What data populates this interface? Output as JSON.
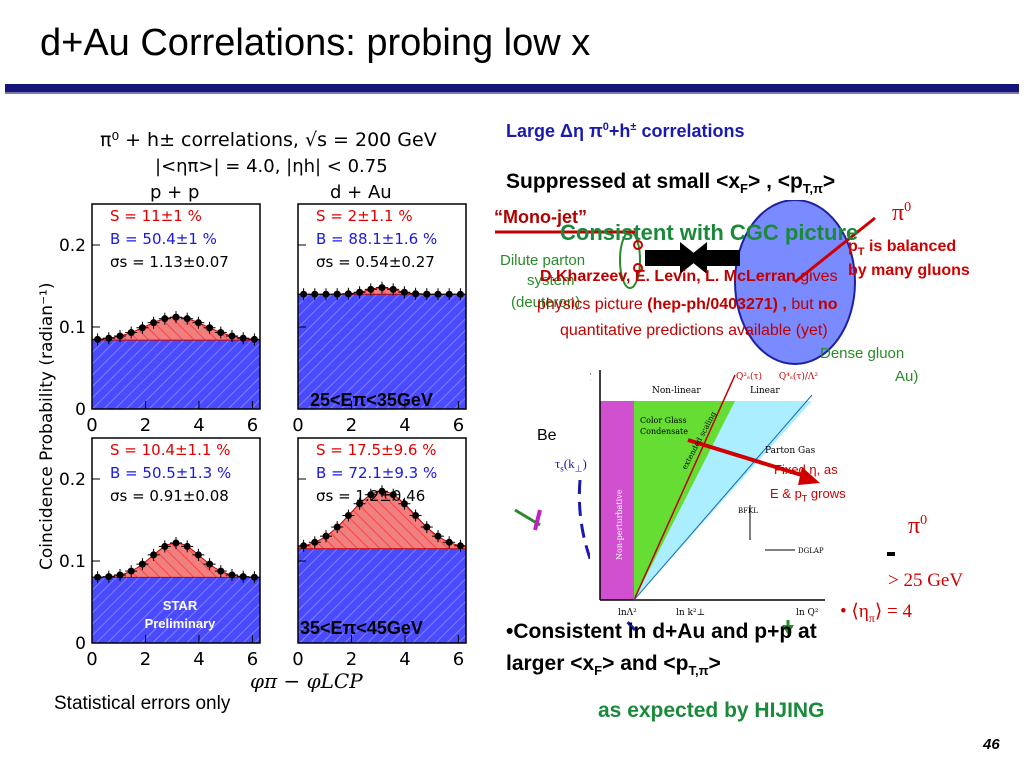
{
  "slide": {
    "title": "d+Au Correlations: probing low x",
    "page_number": "46",
    "footnote": "Statistical errors only",
    "hijing_note": "as expected by HIJING"
  },
  "bullets": {
    "large_prefix": "Large ",
    "large_symbols": "Δη π",
    "large_sup": "0",
    "large_suffix": "+h",
    "large_pm": "±",
    "large_end": " correlations",
    "suppressed_prefix": "Suppressed at small <x",
    "suppressed_sub1": "F",
    "suppressed_mid": "> , <p",
    "suppressed_sub2": "T,π",
    "suppressed_end": ">",
    "consistent_prefix": "•Consistent in d+Au and p+p at",
    "consistent_line2_prefix": "larger <x",
    "consistent_sub1": "F",
    "consistent_mid": "> and <p",
    "consistent_sub2": "T,π",
    "consistent_end": ">"
  },
  "overlay": {
    "mono_jet": "“Mono-jet”",
    "consistent_cgc": "Consistent with CGC picture",
    "dilute_parton": "Dilute parton",
    "system": "system",
    "deuteron": "(deuteron)",
    "pt_balanced": "p",
    "pt_balanced_sub": "T",
    "pt_balanced_rest": " is balanced",
    "by_many_gluons": "by many gluons",
    "kharzeev": "D.Kharzeev, E. Levin, L. McLerran",
    "gives": " gives",
    "physics_picture": "physics picture ",
    "hep_ph": "(hep-ph/0403271) ,",
    "but": " but ",
    "no": "no",
    "quantitative": "quantitative predictions available (yet)",
    "dense_gluon": "Dense gluon",
    "au": "Au)",
    "pi0_top": "π",
    "pi0_top_sup": "0",
    "pi0_right": "π",
    "pi0_right_sup": "0",
    "gt25": "> 25 GeV",
    "eta_pi": "• ⟨η",
    "eta_pi_sub": "π",
    "eta_pi_end": "⟩ = 4",
    "be_fragment": "Be",
    "fixed_eta": "Fixed η, as",
    "e_pt": "E & p",
    "e_pt_sub": "T",
    "e_pt_end": " grows",
    "tau_s": "τ",
    "tau_s_sub": "s",
    "tau_s_arg": "(k",
    "tau_s_arg_end": ")"
  },
  "ccg_plot": {
    "tau_label": "τ",
    "non_linear": "Non-linear",
    "linear": "Linear",
    "qs2": "Q",
    "qs2_sup": "2",
    "qs2_sub": "s",
    "qs2_arg": "(τ)",
    "qs4": "Q",
    "qs4_sup": "4",
    "qs4_sub": "s",
    "qs4_arg": "(τ)/Λ",
    "qs4_arg_sup": "2",
    "color_glass": "Color Glass",
    "condensate": "Condensate",
    "extended_scaling": "extended scaling",
    "parton_gas": "Parton Gas",
    "bfkl": "BFKL",
    "dglap": "DGLAP",
    "non_perturbative": "Non-perturbative",
    "ln_lambda": "lnΛ",
    "ln_lambda_sup": "2",
    "ln_k": "ln k",
    "ln_k_sup": "2",
    "ln_k_sub": "⊥",
    "ln_q": "ln Q",
    "ln_q_sup": "2",
    "colors": {
      "magenta": "#d050d0",
      "green": "#66dd33",
      "cyan": "#aaeeff"
    }
  },
  "left_figure": {
    "header_line1": "π⁰ + h± correlations, √s = 200 GeV",
    "header_line2": "|<ηπ>| = 4.0, |ηh| < 0.75",
    "col_pp": "p + p",
    "col_dau": "d + Au",
    "y_axis_label": "Coincidence Probability (radian⁻¹)",
    "x_axis_label": "φπ − φLCP",
    "y_ticks": [
      "0",
      "0.1",
      "0.2"
    ],
    "x_ticks": [
      "0",
      "2",
      "4",
      "6"
    ],
    "bin1_label": "25<Eπ<35GeV",
    "bin2_label": "35<Eπ<45GeV",
    "star_label": "STAR",
    "preliminary_label": "Preliminary",
    "panels": [
      {
        "name": "pp-low",
        "S": "S = 11±1 %",
        "B": "B = 50.4±1 %",
        "sigma": "σs = 1.13±0.07",
        "baseline": 0.084,
        "amp": 0.028,
        "width": 1.13
      },
      {
        "name": "dau-low",
        "S": "S = 2±1.1 %",
        "B": "B = 88.1±1.6 %",
        "sigma": "σs = 0.54±0.27",
        "baseline": 0.14,
        "amp": 0.008,
        "width": 0.54
      },
      {
        "name": "pp-high",
        "S": "S = 10.4±1.1 %",
        "B": "B = 50.5±1.3 %",
        "sigma": "σs = 0.91±0.08",
        "baseline": 0.08,
        "amp": 0.042,
        "width": 0.91
      },
      {
        "name": "dau-high",
        "S": "S = 17.5±9.6 %",
        "B": "B = 72.1±9.3 %",
        "sigma": "σs = 1.2±0.46",
        "baseline": 0.115,
        "amp": 0.07,
        "width": 1.2
      }
    ]
  }
}
